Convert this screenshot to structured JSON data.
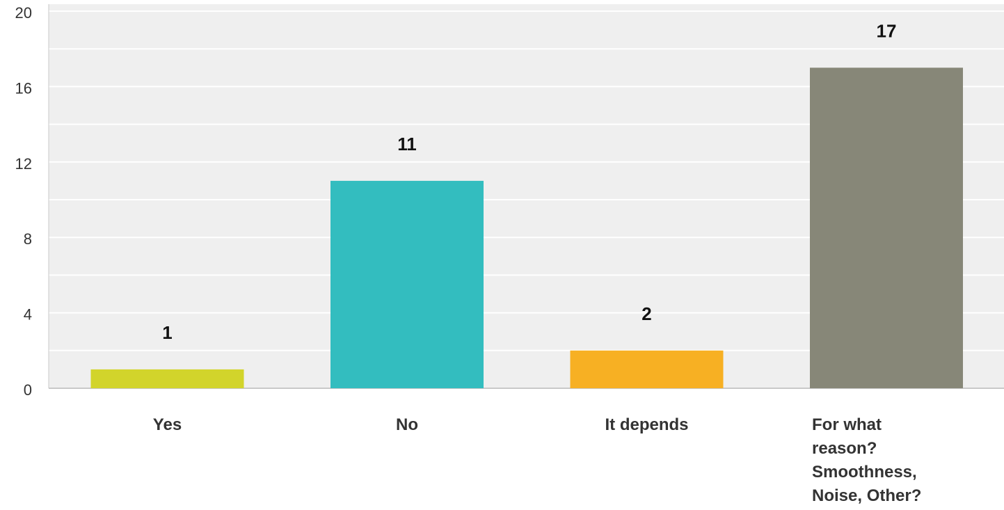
{
  "chart_data": {
    "type": "bar",
    "categories": [
      "Yes",
      "No",
      "It depends",
      "For what reason? Smoothness, Noise, Other?"
    ],
    "category_lines": [
      [
        "Yes"
      ],
      [
        "No"
      ],
      [
        "It depends"
      ],
      [
        "For what",
        "reason?",
        "Smoothness,",
        "Noise, Other?"
      ]
    ],
    "values": [
      1,
      11,
      2,
      17
    ],
    "data_labels": [
      "1",
      "11",
      "2",
      "17"
    ],
    "colors": [
      "#d2d42b",
      "#33bdbf",
      "#f7b023",
      "#878778"
    ],
    "ylim": [
      0,
      20
    ],
    "yticks": [
      0,
      4,
      8,
      12,
      16,
      20
    ],
    "ytick_labels": [
      "0",
      "4",
      "8",
      "12",
      "16",
      "20"
    ],
    "grid": true,
    "plot_background": "#efefef",
    "grid_color": "#ffffff",
    "title": "",
    "xlabel": "",
    "ylabel": ""
  }
}
